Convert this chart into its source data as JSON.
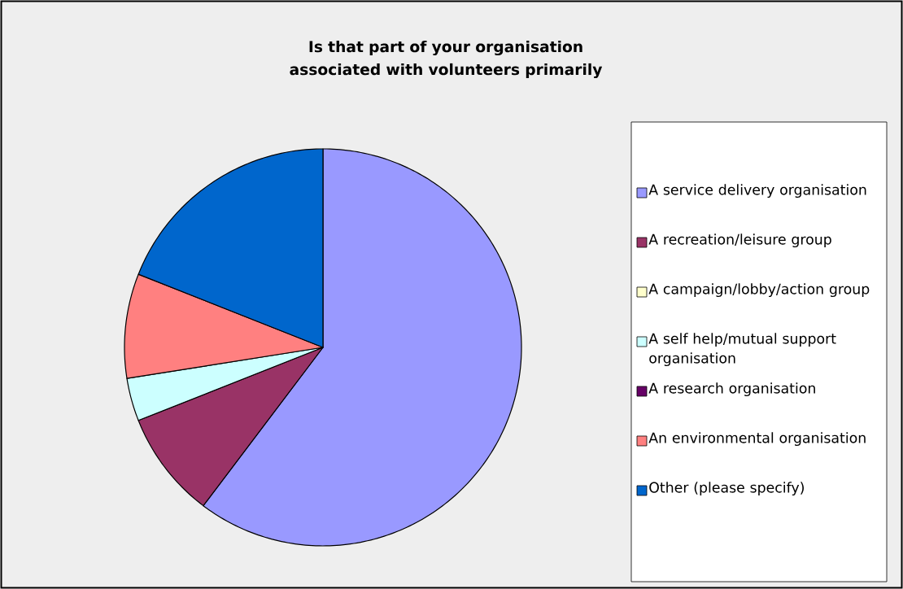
{
  "chart_data": {
    "type": "pie",
    "title": "Is that part of your organisation associated with volunteers primarily",
    "categories": [
      "A service delivery organisation",
      "A recreation/leisure group",
      "A campaign/lobby/action group",
      "A self help/mutual support organisation",
      "A research organisation",
      "An environmental organisation",
      "Other (please specify)"
    ],
    "values": [
      60.3,
      8.7,
      0,
      3.5,
      0,
      8.5,
      19.0
    ],
    "colors": [
      "#9999ff",
      "#993366",
      "#ffffcc",
      "#ccffff",
      "#660066",
      "#ff8080",
      "#0066cc"
    ],
    "legend": "right"
  }
}
